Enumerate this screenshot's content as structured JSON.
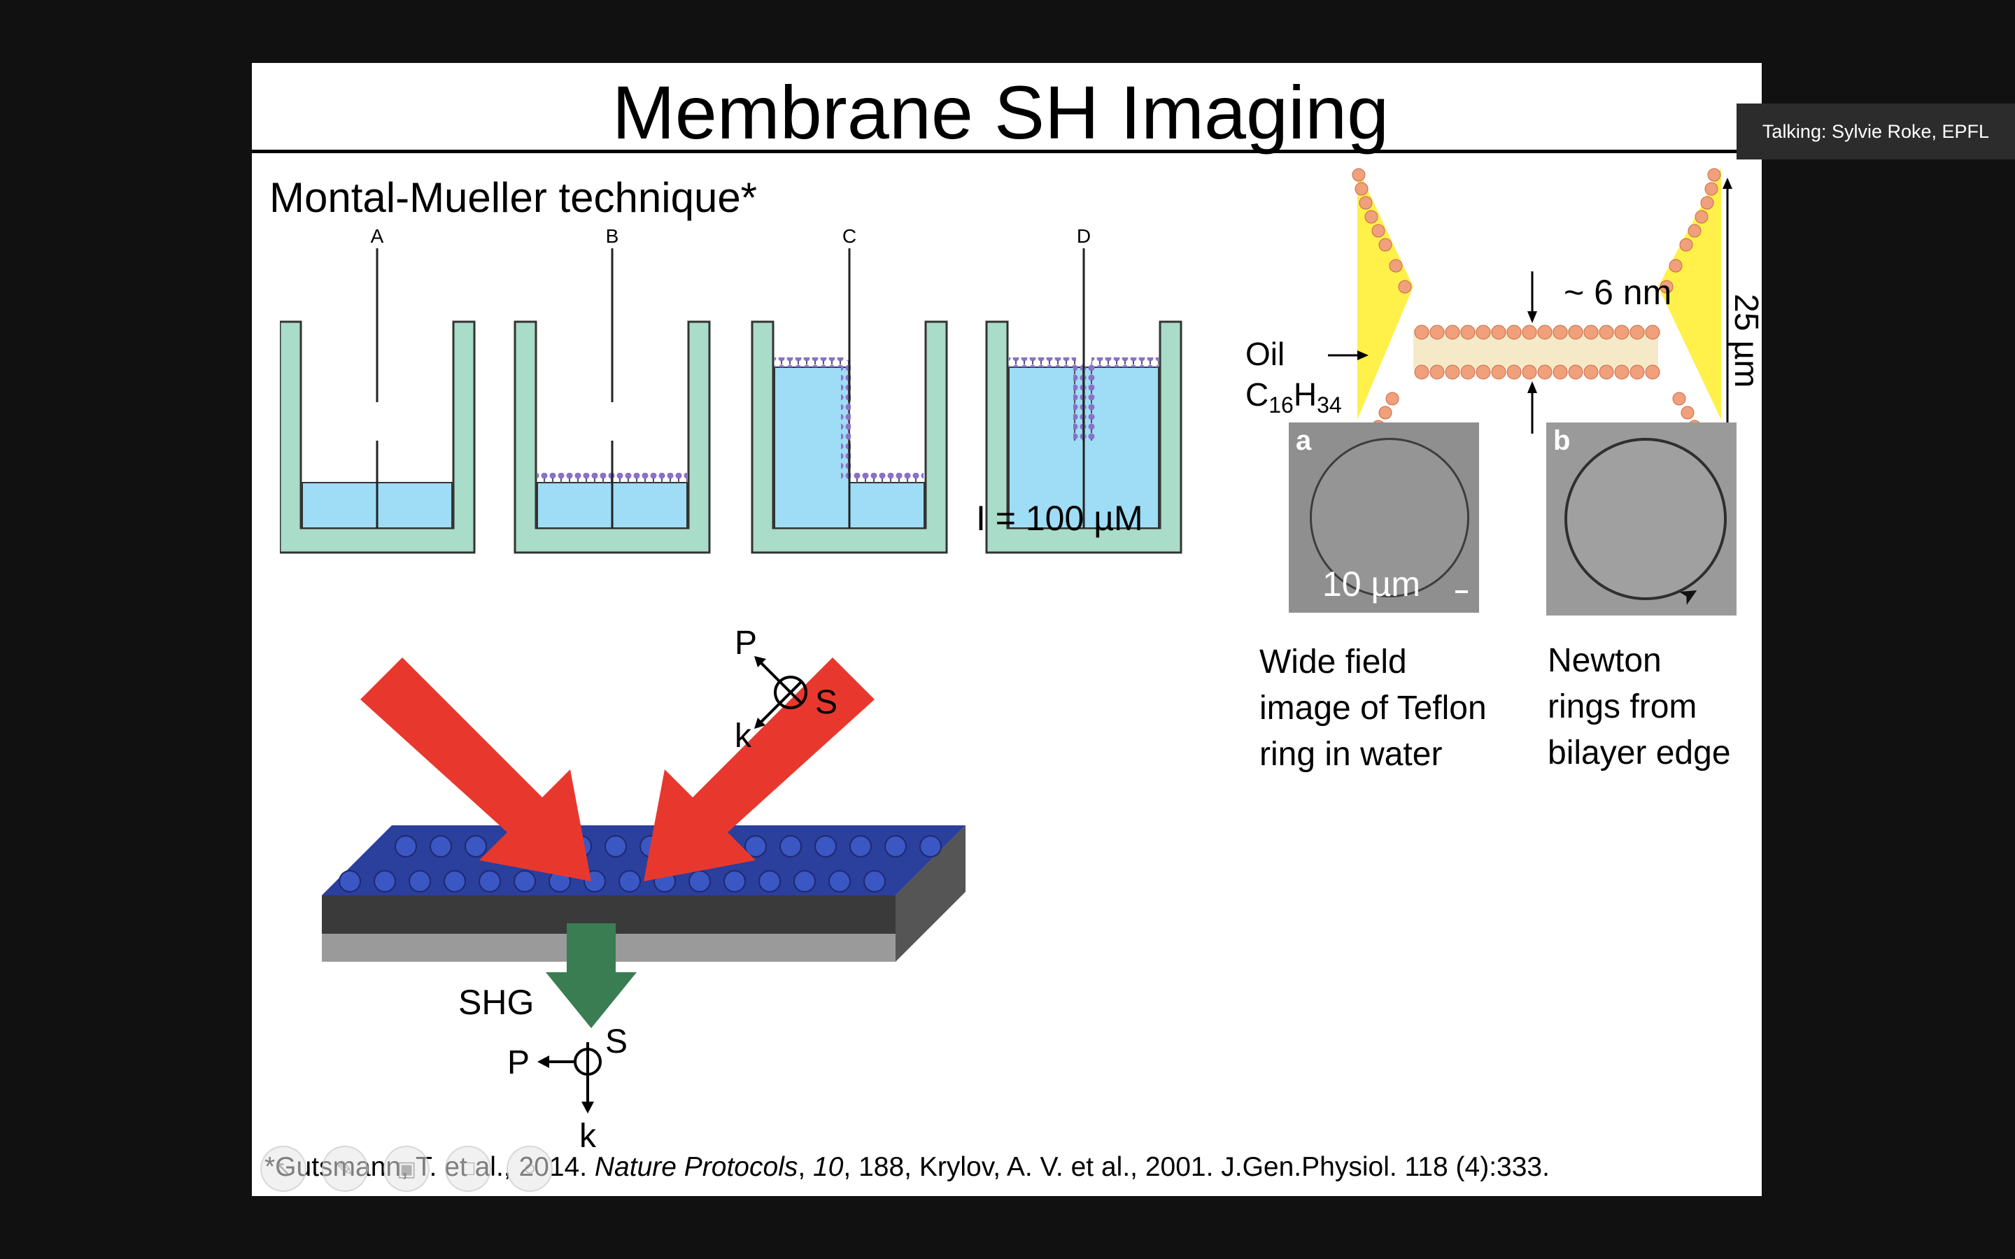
{
  "slide": {
    "title": "Membrane SH Imaging",
    "subtitle": "Montal-Mueller technique*",
    "panel_labels": [
      "A",
      "B",
      "C",
      "D"
    ],
    "concentration": "I = 100 µM",
    "bilayer": {
      "oil_label": "Oil",
      "formula_main": "C",
      "formula_sub1": "16",
      "formula_h": "H",
      "formula_sub2": "34",
      "thickness": "~ 6 nm",
      "side_label": "25 µm"
    },
    "micrographs": [
      {
        "letter": "a",
        "scale": "10 µm"
      },
      {
        "letter": "b"
      }
    ],
    "captions": {
      "left": [
        "Wide field",
        "image of Teflon",
        "ring in water"
      ],
      "right": [
        "Newton",
        "rings from",
        "bilayer edge"
      ]
    },
    "shg_diagram": {
      "p_top": "P",
      "s_top": "S",
      "k_top": "k",
      "shg": "SHG",
      "p_bottom": "P",
      "s_bottom": "S",
      "k_bottom": "k"
    },
    "footnote": {
      "part1": "*Gutsmann, T. et al., 2014. ",
      "journal": "Nature Protocols",
      "part2": ", ",
      "volume": "10",
      "part3": ", 188, Krylov, A. V. et al., 2001. J.Gen.Physiol. 118 (4):333."
    }
  },
  "overlay": {
    "talking": "Talking: Sylvie Roke, EPFL"
  },
  "colors": {
    "water": "#9fdcf5",
    "chamber": "#a9dcc9",
    "arrow_red": "#e8382e",
    "arrow_green": "#3a7d52",
    "lipid_blue": "#2b3f9c",
    "lipid_head": "#f0a07a",
    "oil_yellow": "#fff04a"
  },
  "icons": [
    "pointer-icon",
    "pen-icon",
    "image-icon",
    "chat-icon",
    "record-icon"
  ]
}
